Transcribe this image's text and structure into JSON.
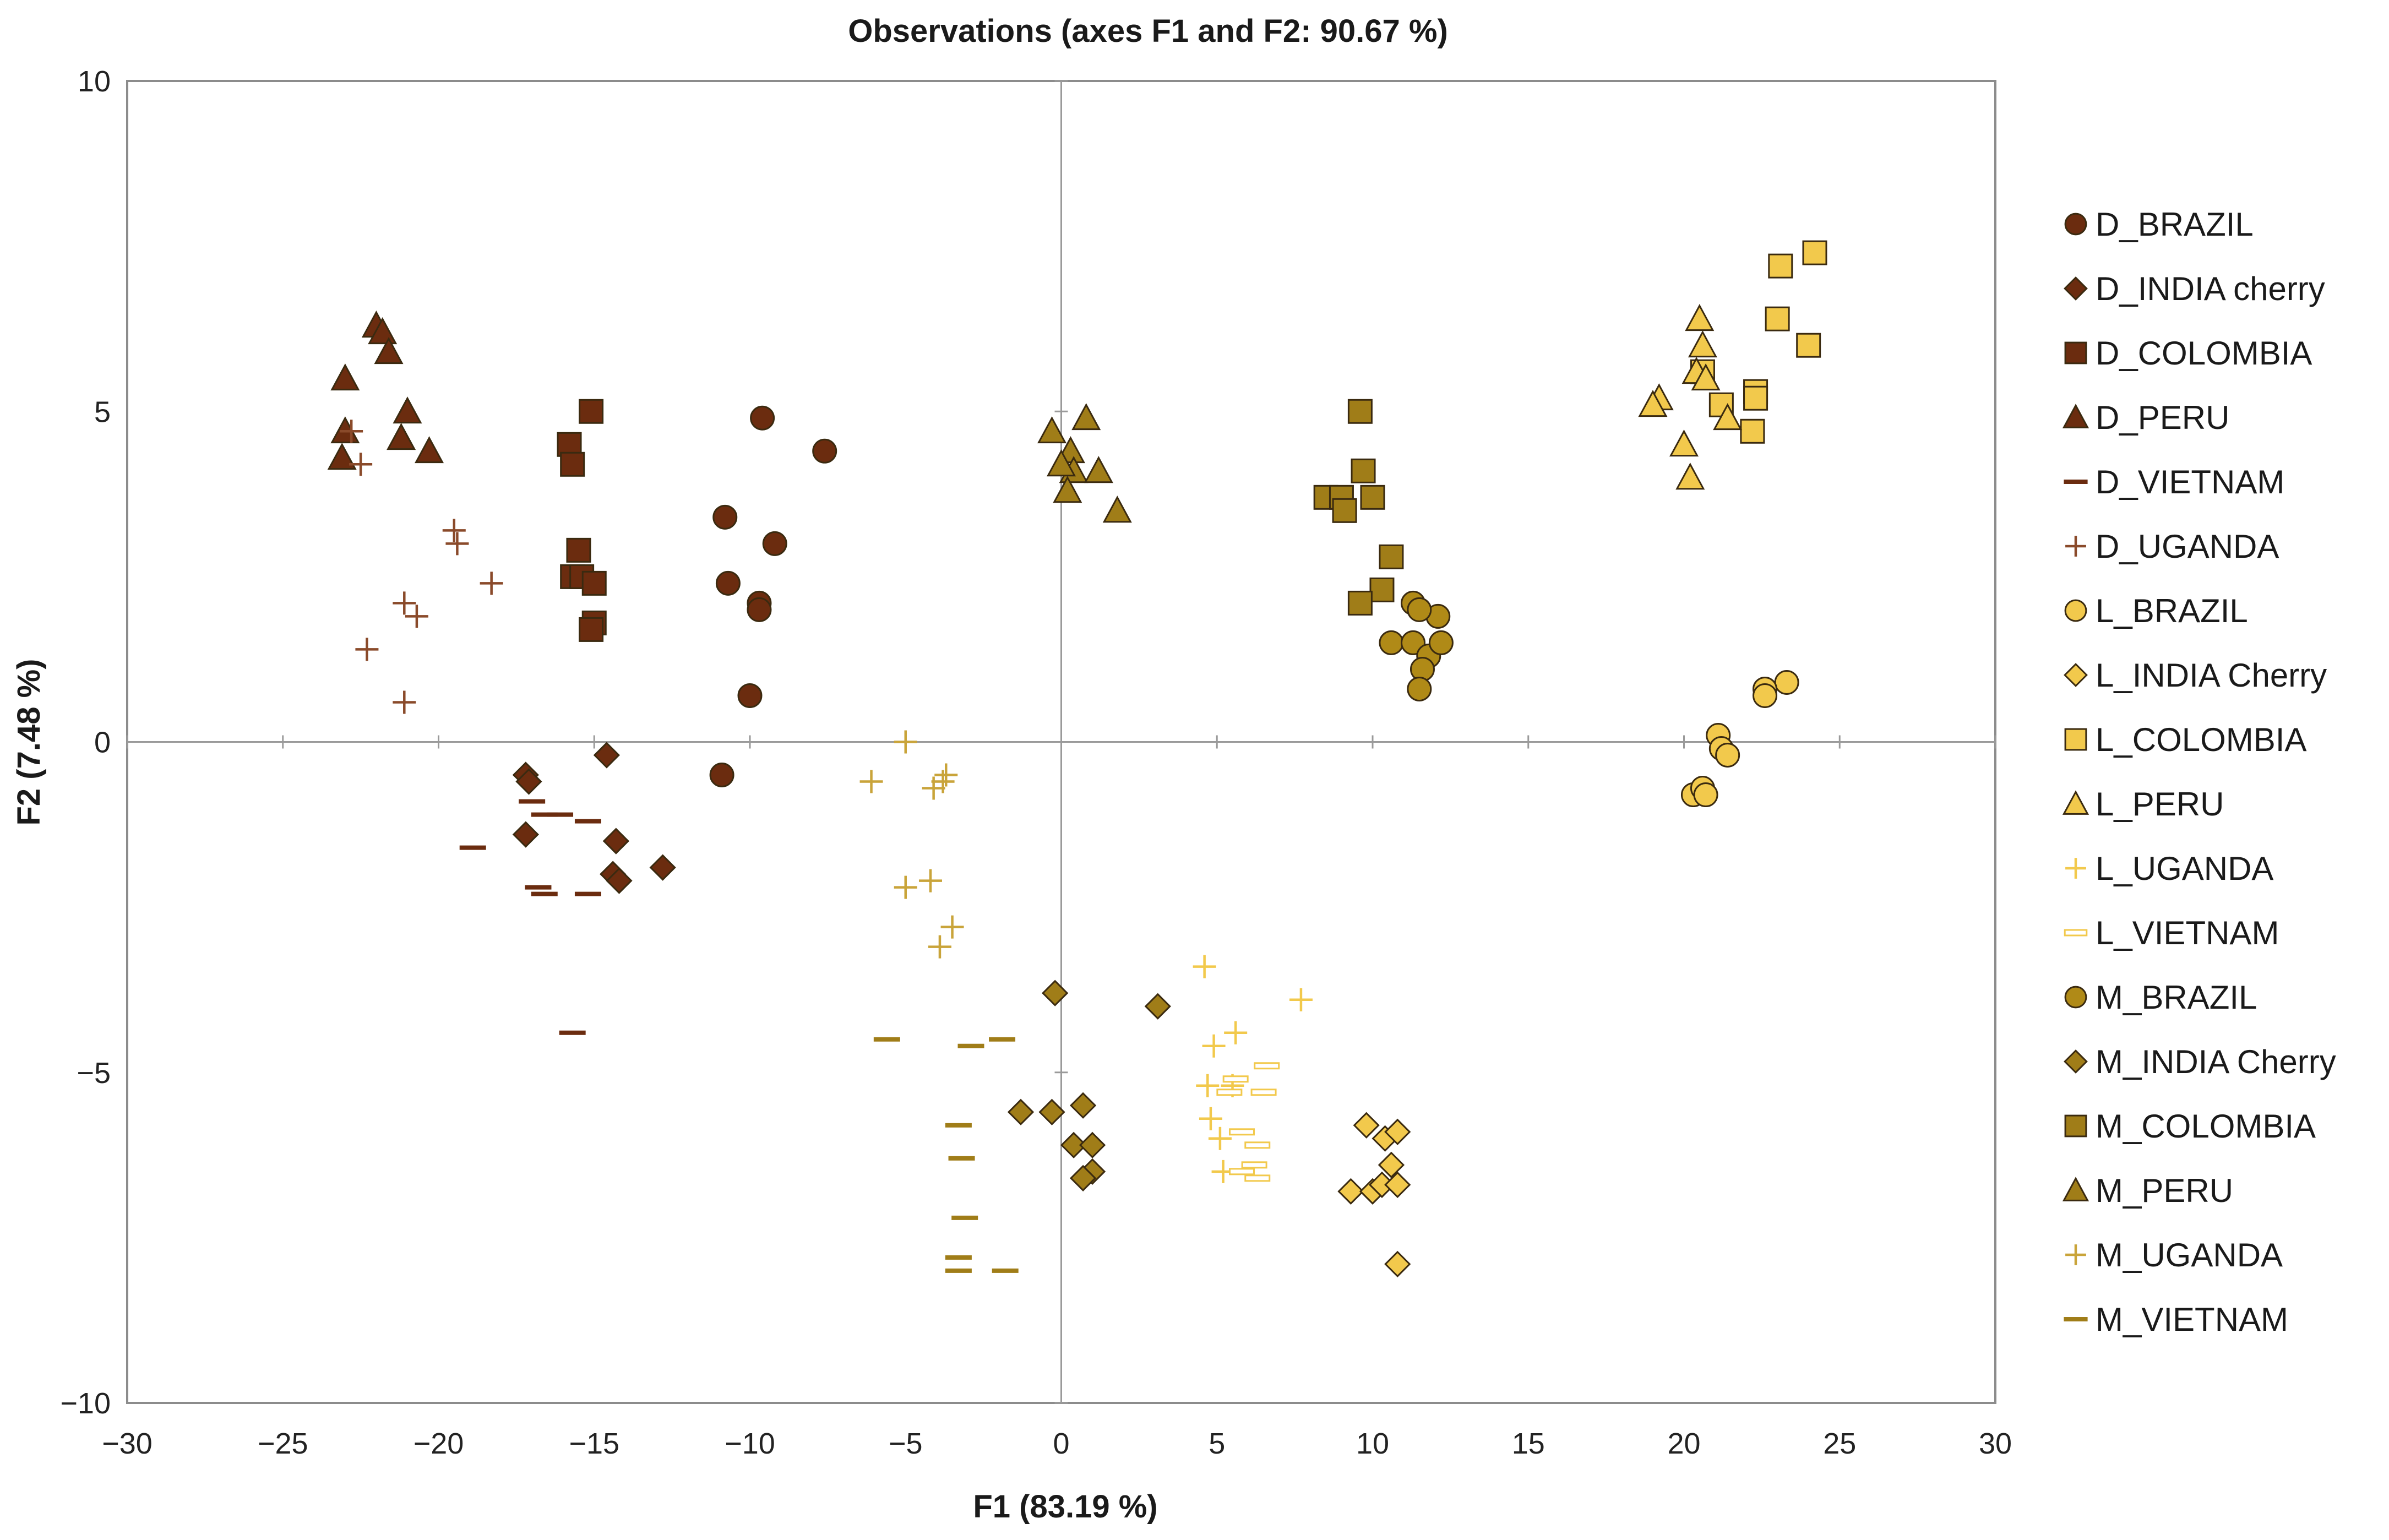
{
  "chart_data": {
    "type": "scatter",
    "title": "Observations (axes F1 and F2: 90.67 %)",
    "xlabel": "F1 (83.19 %)",
    "ylabel": "F2 (7.48 %)",
    "xlim": [
      -30,
      30
    ],
    "ylim": [
      -10,
      10
    ],
    "x_ticks": [
      -30,
      -25,
      -20,
      -15,
      -10,
      -5,
      0,
      5,
      10,
      15,
      20,
      25,
      30
    ],
    "y_ticks": [
      -10,
      -5,
      0,
      5,
      10
    ],
    "x_tick_labels": [
      "−30",
      "−25",
      "−20",
      "−15",
      "−10",
      "−5",
      "0",
      "5",
      "10",
      "15",
      "20",
      "25",
      "30"
    ],
    "y_tick_labels": [
      "−10",
      "−5",
      "0",
      "5",
      "10"
    ],
    "grid": false,
    "legend_position": "right",
    "series": [
      {
        "name": "D_BRAZIL",
        "marker": "circle",
        "color": "#6b2c0f",
        "points": [
          [
            -9.6,
            4.9
          ],
          [
            -7.6,
            4.4
          ],
          [
            -10.8,
            3.4
          ],
          [
            -9.2,
            3.0
          ],
          [
            -10.7,
            2.4
          ],
          [
            -9.7,
            2.1
          ],
          [
            -9.7,
            2.0
          ],
          [
            -10.0,
            0.7
          ],
          [
            -10.9,
            -0.5
          ]
        ]
      },
      {
        "name": "D_INDIA cherry",
        "marker": "diamond",
        "color": "#6b2c0f",
        "points": [
          [
            -17.2,
            -0.5
          ],
          [
            -17.1,
            -0.6
          ],
          [
            -14.6,
            -0.2
          ],
          [
            -17.2,
            -1.4
          ],
          [
            -14.3,
            -1.5
          ],
          [
            -14.4,
            -2.0
          ],
          [
            -14.2,
            -2.1
          ],
          [
            -12.8,
            -1.9
          ]
        ]
      },
      {
        "name": "D_COLOMBIA",
        "marker": "square",
        "color": "#6b2c0f",
        "points": [
          [
            -15.1,
            5.0
          ],
          [
            -15.8,
            4.5
          ],
          [
            -15.7,
            4.2
          ],
          [
            -15.5,
            2.9
          ],
          [
            -15.7,
            2.5
          ],
          [
            -15.4,
            2.5
          ],
          [
            -15.0,
            2.4
          ],
          [
            -15.0,
            1.8
          ],
          [
            -15.1,
            1.7
          ]
        ]
      },
      {
        "name": "D_PERU",
        "marker": "triangle",
        "color": "#6b2c0f",
        "points": [
          [
            -22.0,
            6.3
          ],
          [
            -21.8,
            6.2
          ],
          [
            -21.6,
            5.9
          ],
          [
            -23.0,
            5.5
          ],
          [
            -21.0,
            5.0
          ],
          [
            -23.0,
            4.7
          ],
          [
            -21.2,
            4.6
          ],
          [
            -20.3,
            4.4
          ],
          [
            -23.1,
            4.3
          ]
        ]
      },
      {
        "name": "D_VIETNAM",
        "marker": "dash",
        "color": "#6b2c0f",
        "points": [
          [
            -17.0,
            -0.9
          ],
          [
            -16.6,
            -1.1
          ],
          [
            -16.1,
            -1.1
          ],
          [
            -15.2,
            -1.2
          ],
          [
            -18.9,
            -1.6
          ],
          [
            -16.8,
            -2.2
          ],
          [
            -16.6,
            -2.3
          ],
          [
            -15.2,
            -2.3
          ],
          [
            -15.7,
            -4.4
          ]
        ]
      },
      {
        "name": "D_UGANDA",
        "marker": "plus",
        "color": "#8a4a2a",
        "points": [
          [
            -22.8,
            4.7
          ],
          [
            -22.5,
            4.2
          ],
          [
            -19.5,
            3.2
          ],
          [
            -19.4,
            3.0
          ],
          [
            -18.3,
            2.4
          ],
          [
            -21.1,
            2.1
          ],
          [
            -20.7,
            1.9
          ],
          [
            -22.3,
            1.4
          ],
          [
            -21.1,
            0.6
          ]
        ]
      },
      {
        "name": "L_BRAZIL",
        "marker": "circle",
        "color": "#f2c94c",
        "points": [
          [
            23.3,
            0.9
          ],
          [
            22.6,
            0.8
          ],
          [
            22.6,
            0.7
          ],
          [
            21.1,
            0.1
          ],
          [
            21.2,
            -0.1
          ],
          [
            21.4,
            -0.2
          ],
          [
            20.3,
            -0.8
          ],
          [
            20.6,
            -0.7
          ],
          [
            20.7,
            -0.8
          ]
        ]
      },
      {
        "name": "L_INDIA Cherry",
        "marker": "diamond",
        "color": "#f2c94c",
        "points": [
          [
            9.8,
            -5.8
          ],
          [
            10.4,
            -6.0
          ],
          [
            10.8,
            -5.9
          ],
          [
            10.6,
            -6.4
          ],
          [
            9.3,
            -6.8
          ],
          [
            10.0,
            -6.8
          ],
          [
            10.3,
            -6.7
          ],
          [
            10.8,
            -6.7
          ],
          [
            10.8,
            -7.9
          ]
        ]
      },
      {
        "name": "L_COLOMBIA",
        "marker": "square",
        "color": "#f2c94c",
        "points": [
          [
            24.2,
            7.4
          ],
          [
            23.1,
            7.2
          ],
          [
            23.0,
            6.4
          ],
          [
            24.0,
            6.0
          ],
          [
            20.6,
            5.6
          ],
          [
            22.3,
            5.3
          ],
          [
            22.3,
            5.2
          ],
          [
            21.2,
            5.1
          ],
          [
            22.2,
            4.7
          ]
        ]
      },
      {
        "name": "L_PERU",
        "marker": "triangle",
        "color": "#f2c94c",
        "points": [
          [
            20.5,
            6.4
          ],
          [
            20.6,
            6.0
          ],
          [
            20.4,
            5.6
          ],
          [
            20.7,
            5.5
          ],
          [
            19.2,
            5.2
          ],
          [
            19.0,
            5.1
          ],
          [
            21.4,
            4.9
          ],
          [
            20.0,
            4.5
          ],
          [
            20.2,
            4.0
          ]
        ]
      },
      {
        "name": "L_UGANDA",
        "marker": "plus",
        "color": "#f2c94c",
        "points": [
          [
            4.6,
            -3.4
          ],
          [
            7.7,
            -3.9
          ],
          [
            5.6,
            -4.4
          ],
          [
            4.9,
            -4.6
          ],
          [
            4.7,
            -5.2
          ],
          [
            5.5,
            -5.2
          ],
          [
            4.8,
            -5.7
          ],
          [
            5.1,
            -6.0
          ],
          [
            5.2,
            -6.5
          ]
        ]
      },
      {
        "name": "L_VIETNAM",
        "marker": "dash-outline",
        "color": "#f2c94c",
        "points": [
          [
            6.6,
            -4.9
          ],
          [
            5.6,
            -5.1
          ],
          [
            5.4,
            -5.3
          ],
          [
            6.5,
            -5.3
          ],
          [
            5.8,
            -5.9
          ],
          [
            6.3,
            -6.1
          ],
          [
            5.8,
            -6.5
          ],
          [
            6.2,
            -6.4
          ],
          [
            6.3,
            -6.6
          ]
        ]
      },
      {
        "name": "M_BRAZIL",
        "marker": "circle",
        "color": "#b08a17",
        "points": [
          [
            11.3,
            2.1
          ],
          [
            12.1,
            1.9
          ],
          [
            11.5,
            2.0
          ],
          [
            10.6,
            1.5
          ],
          [
            11.3,
            1.5
          ],
          [
            11.8,
            1.3
          ],
          [
            12.2,
            1.5
          ],
          [
            11.6,
            1.1
          ],
          [
            11.5,
            0.8
          ]
        ]
      },
      {
        "name": "M_INDIA Cherry",
        "marker": "diamond",
        "color": "#a07d18",
        "points": [
          [
            -0.2,
            -3.8
          ],
          [
            3.1,
            -4.0
          ],
          [
            -1.3,
            -5.6
          ],
          [
            -0.3,
            -5.6
          ],
          [
            0.7,
            -5.5
          ],
          [
            0.4,
            -6.1
          ],
          [
            1.0,
            -6.1
          ],
          [
            1.0,
            -6.5
          ],
          [
            0.7,
            -6.6
          ]
        ]
      },
      {
        "name": "M_COLOMBIA",
        "marker": "square",
        "color": "#a07d18",
        "points": [
          [
            9.6,
            5.0
          ],
          [
            9.7,
            4.1
          ],
          [
            8.5,
            3.7
          ],
          [
            9.0,
            3.7
          ],
          [
            10.0,
            3.7
          ],
          [
            9.1,
            3.5
          ],
          [
            10.6,
            2.8
          ],
          [
            10.3,
            2.3
          ],
          [
            9.6,
            2.1
          ]
        ]
      },
      {
        "name": "M_PERU",
        "marker": "triangle",
        "color": "#a07d18",
        "points": [
          [
            -0.3,
            4.7
          ],
          [
            0.8,
            4.9
          ],
          [
            0.3,
            4.4
          ],
          [
            0.4,
            4.1
          ],
          [
            1.2,
            4.1
          ],
          [
            0.0,
            4.2
          ],
          [
            0.2,
            3.8
          ],
          [
            1.8,
            3.5
          ]
        ]
      },
      {
        "name": "M_UGANDA",
        "marker": "plus",
        "color": "#c9a43a",
        "points": [
          [
            -5.0,
            0.0
          ],
          [
            -3.7,
            -0.5
          ],
          [
            -3.8,
            -0.6
          ],
          [
            -4.1,
            -0.7
          ],
          [
            -6.1,
            -0.6
          ],
          [
            -5.0,
            -2.2
          ],
          [
            -4.2,
            -2.1
          ],
          [
            -3.5,
            -2.8
          ],
          [
            -3.9,
            -3.1
          ]
        ]
      },
      {
        "name": "M_VIETNAM",
        "marker": "dash",
        "color": "#a07d18",
        "points": [
          [
            -5.6,
            -4.5
          ],
          [
            -2.9,
            -4.6
          ],
          [
            -1.9,
            -4.5
          ],
          [
            -3.3,
            -5.8
          ],
          [
            -3.2,
            -6.3
          ],
          [
            -3.1,
            -7.2
          ],
          [
            -3.3,
            -7.8
          ],
          [
            -3.3,
            -8.0
          ],
          [
            -1.8,
            -8.0
          ]
        ]
      }
    ]
  }
}
